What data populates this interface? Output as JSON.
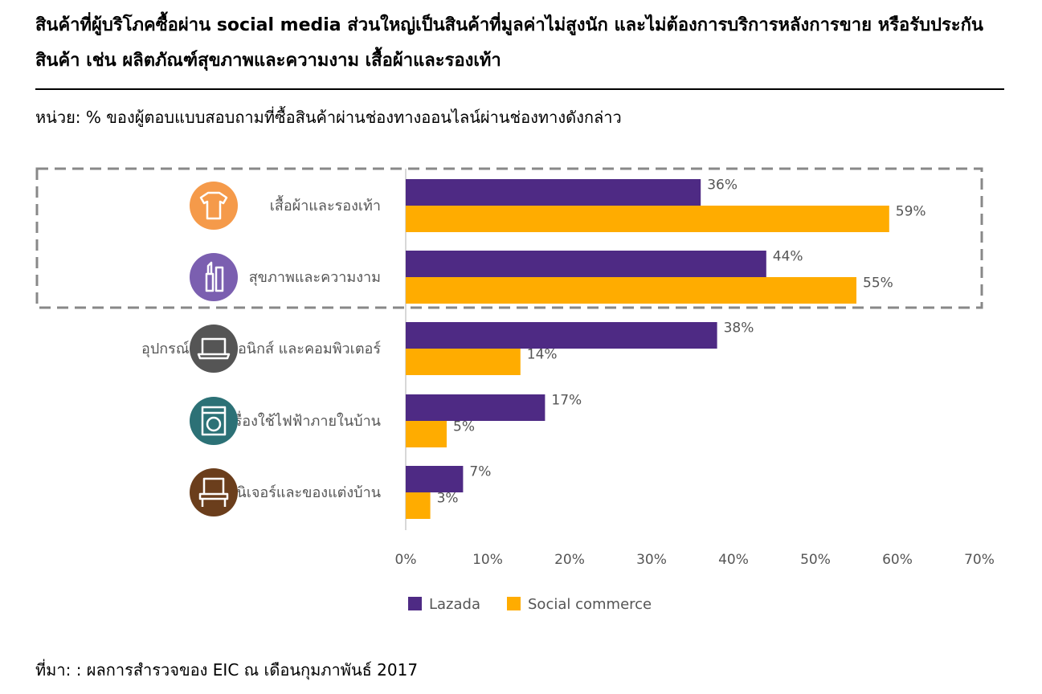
{
  "title": "สินค้าที่ผู้บริโภคซื้อผ่าน social media ส่วนใหญ่เป็นสินค้าที่มูลค่าไม่สูงนัก และไม่ต้องการบริการหลังการขาย หรือรับประกันสินค้า เช่น ผลิตภัณฑ์สุขภาพและความงาม เสื้อผ้าและรองเท้า",
  "unit_note": "หน่วย: % ของผู้ตอบแบบสอบถามที่ซื้อสินค้าผ่านช่องทางออนไลน์ผ่านช่องทางดังกล่าว",
  "source": "ที่มา: : ผลการสำรวจของ EIC ณ เดือนกุมภาพันธ์ 2017",
  "colors": {
    "lazada": "#4e2a84",
    "social_commerce": "#ffac00",
    "icon_clothes": "#f59a4a",
    "icon_beauty": "#7b5fb0",
    "icon_electronics": "#555555",
    "icon_appliance": "#2c7176",
    "icon_furniture": "#6b3e1c",
    "dashed_box": "#888888"
  },
  "chart_data": {
    "type": "bar",
    "orientation": "horizontal",
    "categories": [
      "เสื้อผ้าและรองเท้า",
      "สุขภาพและความงาม",
      "อุปกรณ์อิเล็กทรอนิกส์ และคอมพิวเตอร์",
      "เครื่องใช้ไฟฟ้าภายในบ้าน",
      "เฟอร์นิเจอร์และของแต่งบ้าน"
    ],
    "category_icons": [
      "tshirt-icon",
      "lipstick-icon",
      "laptop-icon",
      "washing-machine-icon",
      "chair-icon"
    ],
    "series": [
      {
        "name": "Lazada",
        "values": [
          36,
          44,
          38,
          17,
          7
        ],
        "labels": [
          "36%",
          "44%",
          "38%",
          "17%",
          "7%"
        ]
      },
      {
        "name": "Social commerce",
        "values": [
          59,
          55,
          14,
          5,
          3
        ],
        "labels": [
          "59%",
          "55%",
          "14%",
          "5%",
          "3%"
        ]
      }
    ],
    "xlim": [
      0,
      70
    ],
    "x_ticks": [
      0,
      10,
      20,
      30,
      40,
      50,
      60,
      70
    ],
    "x_tick_labels": [
      "0%",
      "10%",
      "20%",
      "30%",
      "40%",
      "50%",
      "60%",
      "70%"
    ],
    "grid": false,
    "legend_position": "bottom-left",
    "highlight_note": "dashed box around first two categories"
  }
}
